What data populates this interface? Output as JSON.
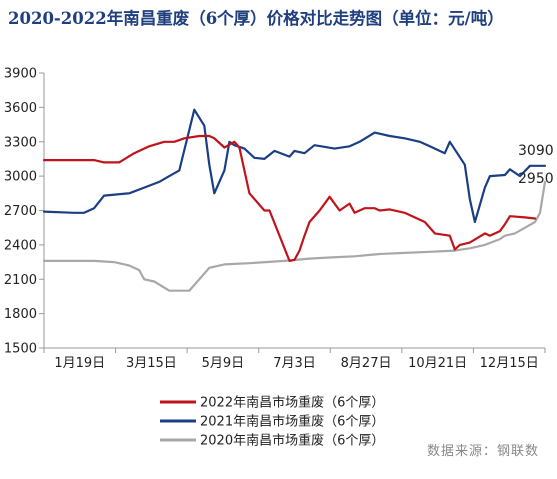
{
  "chart_data": {
    "type": "line",
    "title": "2020-2022年南昌重废（6个厚）价格对比走势图（单位：元/吨）",
    "x_labels": [
      "1月19日",
      "3月15日",
      "5月9日",
      "7月3日",
      "8月27日",
      "10月21日",
      "12月15日"
    ],
    "ylim": [
      1500,
      3900
    ],
    "yticks": [
      1500,
      1800,
      2100,
      2400,
      2700,
      3000,
      3300,
      3600,
      3900
    ],
    "grid": false,
    "legend_position": "bottom-left",
    "series": [
      {
        "name": "2022年南昌市场重废（6个厚）",
        "color": "#c0141c",
        "x": [
          0,
          5,
          10,
          12,
          15,
          18,
          21,
          24,
          26,
          28,
          31,
          33,
          34,
          36,
          38,
          39,
          41,
          44,
          45,
          49,
          50,
          51,
          52,
          53,
          55,
          57,
          59,
          61,
          62,
          64,
          66,
          67,
          69,
          72,
          76,
          78,
          81,
          82,
          83,
          85,
          88,
          89,
          91,
          92,
          93,
          96,
          98
        ],
        "y": [
          3140,
          3140,
          3140,
          3120,
          3120,
          3200,
          3260,
          3300,
          3300,
          3330,
          3350,
          3350,
          3330,
          3250,
          3300,
          3250,
          2850,
          2700,
          2700,
          2260,
          2270,
          2350,
          2480,
          2600,
          2700,
          2820,
          2700,
          2760,
          2680,
          2720,
          2720,
          2700,
          2710,
          2680,
          2600,
          2500,
          2480,
          2360,
          2400,
          2420,
          2500,
          2480,
          2520,
          2580,
          2650,
          2640,
          2630
        ]
      },
      {
        "name": "2021年南昌市场重废（6个厚）",
        "color": "#1a3f84",
        "x": [
          0,
          6,
          8,
          10,
          12,
          17,
          20,
          23,
          25,
          27,
          30,
          32,
          33,
          34,
          36,
          37,
          38,
          40,
          42,
          44,
          46,
          49,
          50,
          52,
          54,
          58,
          61,
          63,
          66,
          69,
          72,
          75,
          77,
          80,
          81,
          84,
          85,
          86,
          88,
          89,
          92,
          93,
          95,
          97,
          100
        ],
        "y": [
          2690,
          2680,
          2680,
          2720,
          2830,
          2850,
          2900,
          2950,
          3000,
          3050,
          3580,
          3440,
          3100,
          2850,
          3050,
          3300,
          3270,
          3240,
          3160,
          3150,
          3220,
          3170,
          3220,
          3200,
          3270,
          3240,
          3260,
          3300,
          3380,
          3350,
          3330,
          3300,
          3260,
          3200,
          3300,
          3100,
          2800,
          2600,
          2900,
          3000,
          3010,
          3060,
          3000,
          3090,
          3090
        ]
      },
      {
        "name": "2020年南昌市场重废（6个厚）",
        "color": "#a8a8a8",
        "x": [
          0,
          10,
          14,
          17,
          19,
          20,
          22,
          25,
          29,
          30,
          33,
          36,
          41,
          48,
          53,
          57,
          62,
          67,
          72,
          77,
          82,
          85,
          88,
          91,
          92,
          94,
          96,
          98,
          99,
          100
        ],
        "y": [
          2260,
          2260,
          2250,
          2220,
          2180,
          2100,
          2080,
          2000,
          2000,
          2050,
          2200,
          2230,
          2240,
          2260,
          2280,
          2290,
          2300,
          2320,
          2330,
          2340,
          2350,
          2370,
          2400,
          2450,
          2480,
          2500,
          2550,
          2600,
          2680,
          2950
        ]
      }
    ],
    "end_labels": [
      "3090",
      "2950"
    ]
  },
  "source_text": "数据来源：钢联数"
}
